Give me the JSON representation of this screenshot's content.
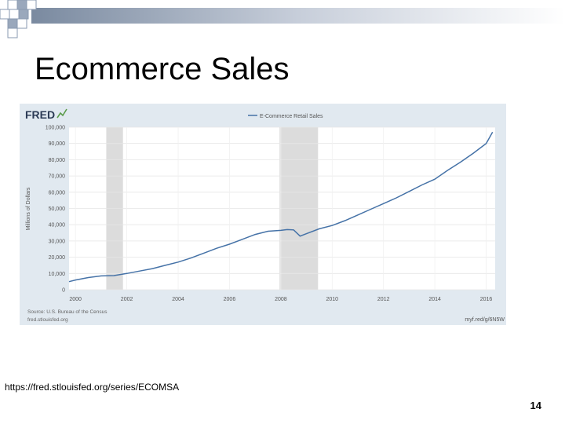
{
  "slide": {
    "title": "Ecommerce Sales",
    "source_url": "https://fred.stlouisfed.org/series/ECOMSA",
    "page_number": "14"
  },
  "fred": {
    "logo": "FRED",
    "footer_left_1": "Source: U.S. Bureau of the Census",
    "footer_left_2": "fred.stlouisfed.org",
    "footer_right": "myf.red/g/6N5W"
  },
  "colors": {
    "line": "#4572a7",
    "panel": "#e1e9f0",
    "plot": "#ffffff",
    "recession": "#dcdcdc"
  },
  "chart_data": {
    "type": "line",
    "legend_position": "top-center",
    "grid": true,
    "ylabel": "Millions of Dollars",
    "xlim": [
      1999.75,
      2016.35
    ],
    "ylim": [
      0,
      100000
    ],
    "yticks": [
      0,
      10000,
      20000,
      30000,
      40000,
      50000,
      60000,
      70000,
      80000,
      90000,
      100000
    ],
    "ytick_labels": [
      "0",
      "10,000",
      "20,000",
      "30,000",
      "40,000",
      "50,000",
      "60,000",
      "70,000",
      "80,000",
      "90,000",
      "100,000"
    ],
    "xticks": [
      2000,
      2002,
      2004,
      2006,
      2008,
      2010,
      2012,
      2014,
      2016
    ],
    "xtick_labels": [
      "2000",
      "2002",
      "2004",
      "2006",
      "2008",
      "2010",
      "2012",
      "2014",
      "2016"
    ],
    "recessions": [
      [
        2001.2,
        2001.85
      ],
      [
        2007.95,
        2009.45
      ]
    ],
    "series": [
      {
        "name": "E-Commerce Retail Sales",
        "x": [
          1999.75,
          2000.0,
          2000.5,
          2001.0,
          2001.5,
          2002.0,
          2002.5,
          2003.0,
          2003.5,
          2004.0,
          2004.5,
          2005.0,
          2005.5,
          2006.0,
          2006.5,
          2007.0,
          2007.5,
          2008.0,
          2008.25,
          2008.5,
          2008.75,
          2009.0,
          2009.5,
          2010.0,
          2010.5,
          2011.0,
          2011.5,
          2012.0,
          2012.5,
          2013.0,
          2013.5,
          2014.0,
          2014.5,
          2015.0,
          2015.5,
          2016.0,
          2016.25
        ],
        "values": [
          5000,
          6000,
          7500,
          8500,
          8700,
          10000,
          11500,
          13000,
          15000,
          17000,
          19500,
          22500,
          25500,
          28000,
          31000,
          34000,
          36000,
          36500,
          37000,
          36800,
          33000,
          34500,
          37500,
          39500,
          42500,
          46000,
          49500,
          53000,
          56500,
          60500,
          64500,
          68000,
          73500,
          78500,
          84000,
          90000,
          97000
        ]
      }
    ]
  }
}
